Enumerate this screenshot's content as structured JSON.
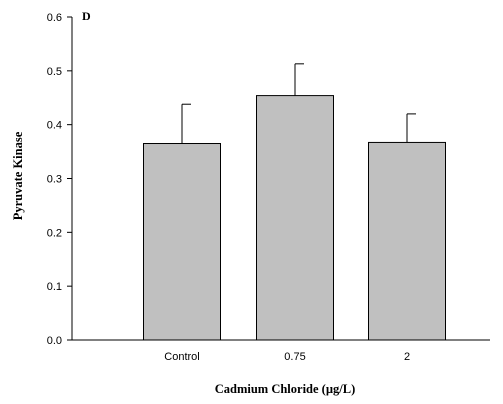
{
  "chart_data": {
    "type": "bar",
    "panel_label": "D",
    "categories": [
      "Control",
      "0.75",
      "2"
    ],
    "values": [
      0.365,
      0.454,
      0.367
    ],
    "errors": [
      0.073,
      0.059,
      0.053
    ],
    "xlabel": "Cadmium Chloride (µg/L)",
    "ylabel": "Pyruvate Kinase",
    "ylim": [
      0,
      0.6
    ],
    "yticks": [
      0.0,
      0.1,
      0.2,
      0.3,
      0.4,
      0.5,
      0.6
    ],
    "ytick_labels": [
      "0.0",
      "0.1",
      "0.2",
      "0.3",
      "0.4",
      "0.5",
      "0.6"
    ],
    "grid": false,
    "bar_color": "#c0c0c0",
    "edge_color": "#000000"
  }
}
